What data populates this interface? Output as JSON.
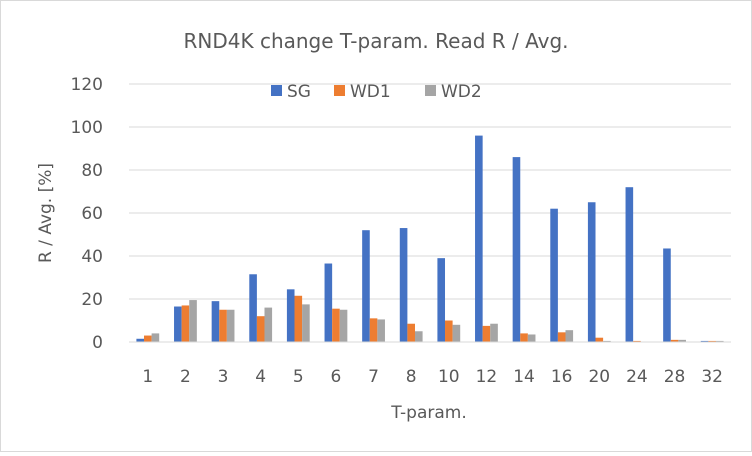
{
  "chart_data": {
    "type": "bar",
    "title": "RND4K change T-param. Read R / Avg.",
    "xlabel": "T-param.",
    "ylabel": "R / Avg. [%]",
    "ylim": [
      0,
      120
    ],
    "yticks": [
      "0",
      "20",
      "40",
      "60",
      "80",
      "100",
      "120"
    ],
    "grid": true,
    "legend_position": "top",
    "categories": [
      "1",
      "2",
      "3",
      "4",
      "5",
      "6",
      "7",
      "8",
      "10",
      "12",
      "14",
      "16",
      "20",
      "24",
      "28",
      "32"
    ],
    "series": [
      {
        "name": "SG",
        "color": "#4472C4",
        "values": [
          1.5,
          16.5,
          19,
          31.5,
          24.5,
          36.5,
          52,
          53,
          39,
          96,
          86,
          62,
          65,
          72,
          43.5,
          0.5
        ]
      },
      {
        "name": "WD1",
        "color": "#ED7D31",
        "values": [
          3,
          17,
          15,
          12,
          21.5,
          15.5,
          11,
          8.5,
          10,
          7.5,
          4,
          4.5,
          2,
          0.5,
          1,
          0.5
        ]
      },
      {
        "name": "WD2",
        "color": "#A5A5A5",
        "values": [
          4,
          19.5,
          15,
          16,
          17.5,
          15,
          10.5,
          5,
          8,
          8.5,
          3.5,
          5.5,
          0.5,
          0,
          1,
          0.5
        ]
      }
    ]
  }
}
